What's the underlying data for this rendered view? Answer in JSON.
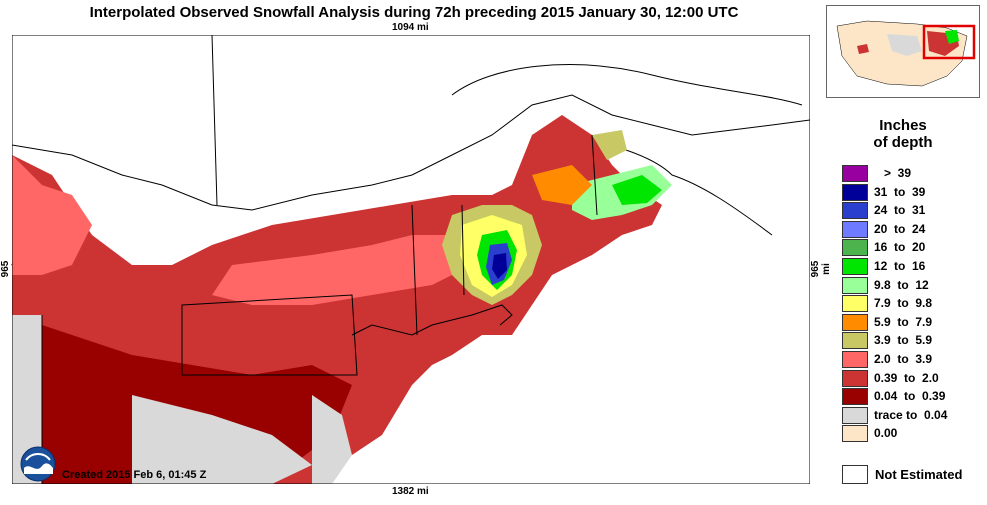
{
  "title": "Interpolated Observed Snowfall Analysis during 72h preceding 2015 January 30, 12:00 UTC",
  "distances": {
    "top": "1094 mi",
    "bottom": "1382 mi",
    "left": "965 mi",
    "right": "965 mi"
  },
  "legend": {
    "title_line1": "Inches",
    "title_line2": "of depth",
    "items": [
      {
        "label": "   >  39",
        "color": "#9900a0"
      },
      {
        "label": "31  to  39",
        "color": "#000099"
      },
      {
        "label": "24  to  31",
        "color": "#2b3fcf"
      },
      {
        "label": "20  to  24",
        "color": "#6e7aff"
      },
      {
        "label": "16  to  20",
        "color": "#4db34d"
      },
      {
        "label": "12  to  16",
        "color": "#00e600"
      },
      {
        "label": "9.8  to  12",
        "color": "#99ff99"
      },
      {
        "label": "7.9  to  9.8",
        "color": "#ffff66"
      },
      {
        "label": "5.9  to  7.9",
        "color": "#ff8c00"
      },
      {
        "label": "3.9  to  5.9",
        "color": "#c8c864"
      },
      {
        "label": "2.0  to  3.9",
        "color": "#ff6666"
      },
      {
        "label": "0.39  to  2.0",
        "color": "#cc3333"
      },
      {
        "label": "0.04  to  0.39",
        "color": "#990000"
      },
      {
        "label": "trace to  0.04",
        "color": "#d9d9d9"
      },
      {
        "label": "0.00",
        "color": "#fde6c8"
      }
    ],
    "not_estimated": "Not Estimated"
  },
  "created": "Created 2015 Feb 6, 01:45 Z",
  "logo_text": "NOAA",
  "colors": {
    "water": "#ffffff",
    "land_none": "#fde6c8",
    "trace": "#d9d9d9",
    "inset_box": "#e00000"
  }
}
